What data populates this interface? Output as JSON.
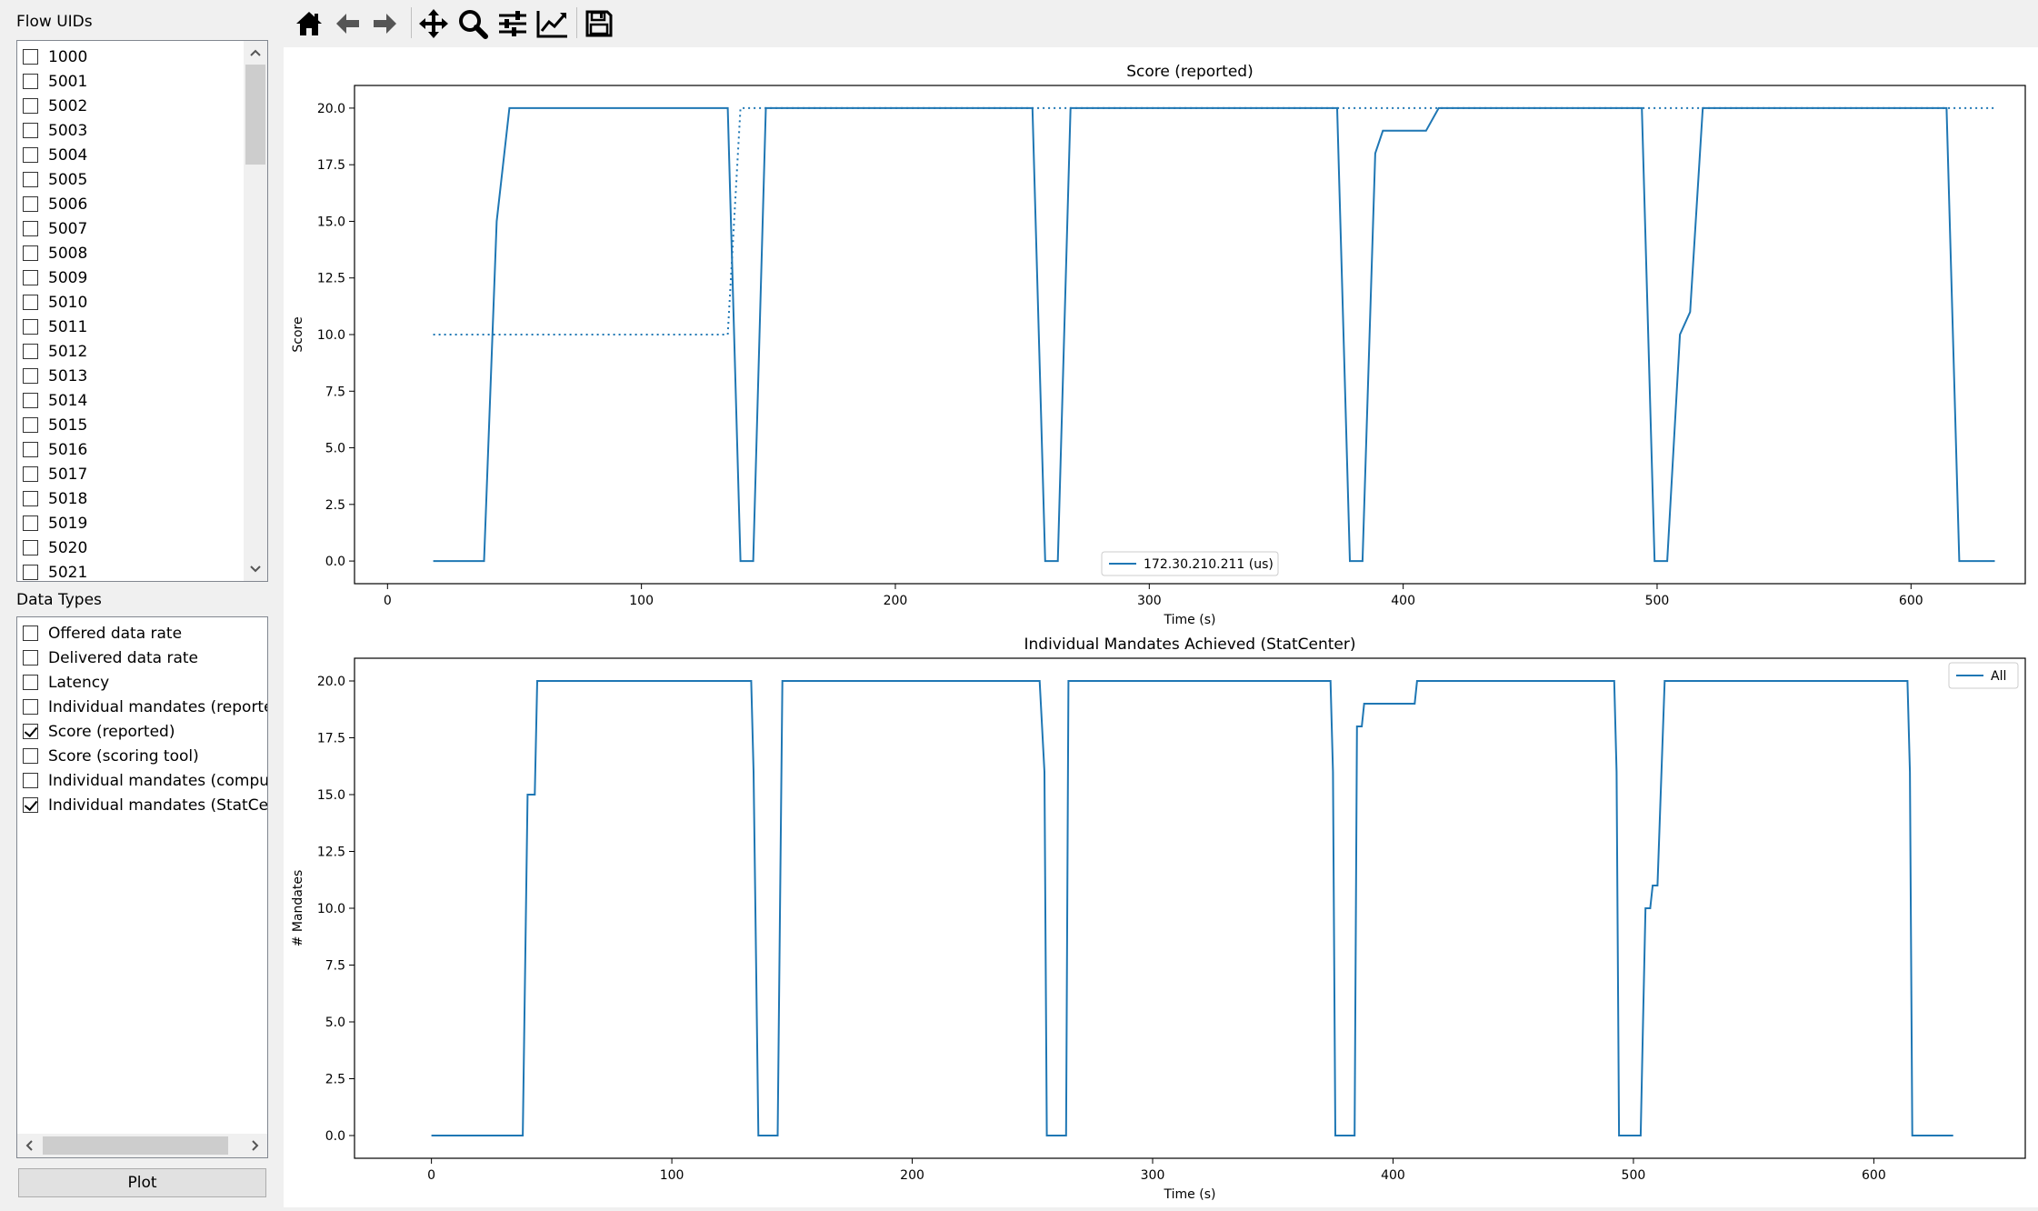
{
  "sidebar": {
    "flow_uids_label": "Flow UIDs",
    "flow_uids": [
      "1000",
      "5001",
      "5002",
      "5003",
      "5004",
      "5005",
      "5006",
      "5007",
      "5008",
      "5009",
      "5010",
      "5011",
      "5012",
      "5013",
      "5014",
      "5015",
      "5016",
      "5017",
      "5018",
      "5019",
      "5020",
      "5021"
    ],
    "data_types_label": "Data Types",
    "data_types": [
      {
        "label": "Offered data rate",
        "checked": false
      },
      {
        "label": "Delivered data rate",
        "checked": false
      },
      {
        "label": "Latency",
        "checked": false
      },
      {
        "label": "Individual mandates (reported)",
        "checked": false
      },
      {
        "label": "Score (reported)",
        "checked": true
      },
      {
        "label": "Score (scoring tool)",
        "checked": false
      },
      {
        "label": "Individual mandates (computed)",
        "checked": false
      },
      {
        "label": "Individual mandates (StatCenter)",
        "checked": true
      }
    ],
    "plot_button": "Plot"
  },
  "toolbar": {
    "icons": [
      "home-icon",
      "back-icon",
      "forward-icon",
      "pan-icon",
      "zoom-icon",
      "configure-subplots-icon",
      "edit-axis-icon",
      "save-icon"
    ]
  },
  "chart_data": [
    {
      "type": "line",
      "title": "Score (reported)",
      "xlabel": "Time (s)",
      "ylabel": "Score",
      "xlim": [
        -13,
        645
      ],
      "ylim": [
        -1,
        21
      ],
      "xticks": [
        0,
        100,
        200,
        300,
        400,
        500,
        600
      ],
      "yticks": [
        0.0,
        2.5,
        5.0,
        7.5,
        10.0,
        12.5,
        15.0,
        17.5,
        20.0
      ],
      "grid": false,
      "legend_position": "lower-center",
      "series": [
        {
          "name": "172.30.210.211 (us)",
          "style": "solid",
          "color": "#1f77b4",
          "x": [
            18,
            38,
            43,
            48,
            134,
            139,
            144,
            149,
            254,
            259,
            264,
            269,
            374,
            379,
            384,
            389,
            392,
            396,
            409,
            414,
            494,
            499,
            504,
            509,
            513,
            518,
            614,
            619,
            633
          ],
          "y": [
            0,
            0,
            15,
            20,
            20,
            0,
            0,
            20,
            20,
            0,
            0,
            20,
            20,
            0,
            0,
            18,
            19,
            19,
            19,
            20,
            20,
            0,
            0,
            10,
            11,
            20,
            20,
            0,
            0
          ]
        },
        {
          "name": "",
          "style": "dotted",
          "color": "#1f77b4",
          "x": [
            18,
            134,
            139,
            633
          ],
          "y": [
            10,
            10,
            20,
            20
          ]
        }
      ]
    },
    {
      "type": "line",
      "title": "Individual Mandates Achieved (StatCenter)",
      "xlabel": "Time (s)",
      "ylabel": "# Mandates",
      "xlim": [
        -32,
        663
      ],
      "ylim": [
        -1,
        21
      ],
      "xticks": [
        0,
        100,
        200,
        300,
        400,
        500,
        600
      ],
      "yticks": [
        0.0,
        2.5,
        5.0,
        7.5,
        10.0,
        12.5,
        15.0,
        17.5,
        20.0
      ],
      "grid": false,
      "legend_position": "top-right",
      "series": [
        {
          "name": "All",
          "style": "solid",
          "color": "#1f77b4",
          "x": [
            0,
            38,
            40,
            43,
            44,
            133,
            134,
            136,
            144,
            146,
            253,
            255,
            256,
            264,
            265,
            374,
            375,
            376,
            384,
            385,
            387,
            388,
            390,
            409,
            410,
            492,
            493,
            494,
            503,
            504,
            505,
            507,
            508,
            510,
            513,
            614,
            615,
            616,
            633
          ],
          "y": [
            0,
            0,
            15,
            15,
            20,
            20,
            16,
            0,
            0,
            20,
            20,
            16,
            0,
            0,
            20,
            20,
            16,
            0,
            0,
            18,
            18,
            19,
            19,
            19,
            20,
            20,
            16,
            0,
            0,
            5,
            10,
            10,
            11,
            11,
            20,
            20,
            16,
            0,
            0
          ]
        }
      ]
    }
  ]
}
